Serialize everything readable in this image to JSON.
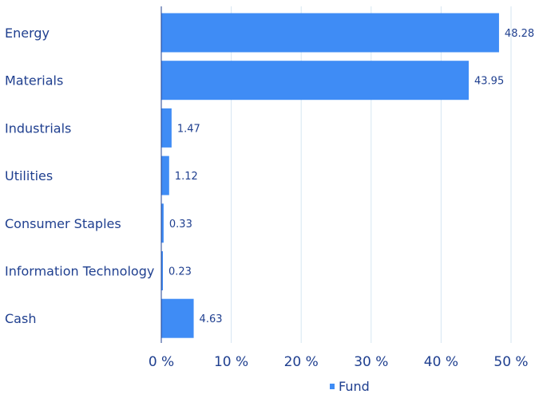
{
  "chart_data": {
    "type": "bar",
    "orientation": "horizontal",
    "categories": [
      "Energy",
      "Materials",
      "Industrials",
      "Utilities",
      "Consumer Staples",
      "Information Technology",
      "Cash"
    ],
    "series": [
      {
        "name": "Fund",
        "values": [
          48.28,
          43.95,
          1.47,
          1.12,
          0.33,
          0.23,
          4.63
        ],
        "value_labels": [
          "48.28",
          "43.95",
          "1.47",
          "1.12",
          "0.33",
          "0.23",
          "4.63"
        ]
      }
    ],
    "xlim": [
      0,
      50
    ],
    "xticks": [
      0,
      10,
      20,
      30,
      40,
      50
    ],
    "xtick_labels": [
      "0 %",
      "10 %",
      "20 %",
      "30 %",
      "40 %",
      "50 %"
    ],
    "title": "",
    "xlabel": "",
    "ylabel": "",
    "grid": "vertical",
    "legend_position": "bottom",
    "colors": {
      "bar": "#3f8cf5",
      "grid": "#d6e6f2",
      "axis": "#1f3f8f",
      "text": "#1f3f8f"
    }
  }
}
